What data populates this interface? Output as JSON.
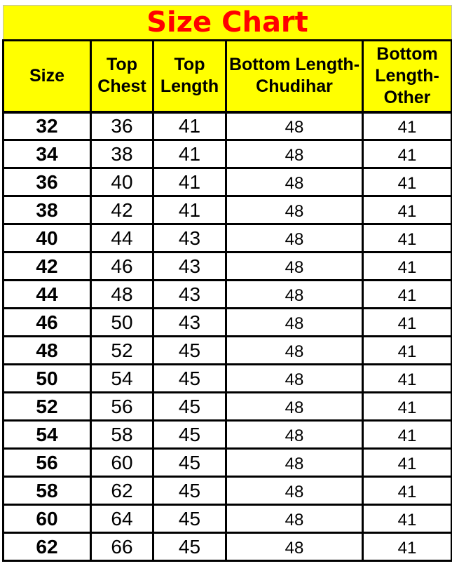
{
  "title": "Size Chart",
  "colors": {
    "title_text": "#FF0000",
    "header_bg": "#FFFF00",
    "border": "#000000",
    "row_bg": "#FFFFFF",
    "body_text": "#000000"
  },
  "chart_data": {
    "type": "table",
    "title": "Size Chart",
    "columns": [
      "Size",
      "Top Chest",
      "Top Length",
      "Bottom Length-Chudihar",
      "Bottom Length-Other"
    ],
    "rows": [
      [
        "32",
        "36",
        "41",
        "48",
        "41"
      ],
      [
        "34",
        "38",
        "41",
        "48",
        "41"
      ],
      [
        "36",
        "40",
        "41",
        "48",
        "41"
      ],
      [
        "38",
        "42",
        "41",
        "48",
        "41"
      ],
      [
        "40",
        "44",
        "43",
        "48",
        "41"
      ],
      [
        "42",
        "46",
        "43",
        "48",
        "41"
      ],
      [
        "44",
        "48",
        "43",
        "48",
        "41"
      ],
      [
        "46",
        "50",
        "43",
        "48",
        "41"
      ],
      [
        "48",
        "52",
        "45",
        "48",
        "41"
      ],
      [
        "50",
        "54",
        "45",
        "48",
        "41"
      ],
      [
        "52",
        "56",
        "45",
        "48",
        "41"
      ],
      [
        "54",
        "58",
        "45",
        "48",
        "41"
      ],
      [
        "56",
        "60",
        "45",
        "48",
        "41"
      ],
      [
        "58",
        "62",
        "45",
        "48",
        "41"
      ],
      [
        "60",
        "64",
        "45",
        "48",
        "41"
      ],
      [
        "62",
        "66",
        "45",
        "48",
        "41"
      ]
    ]
  }
}
